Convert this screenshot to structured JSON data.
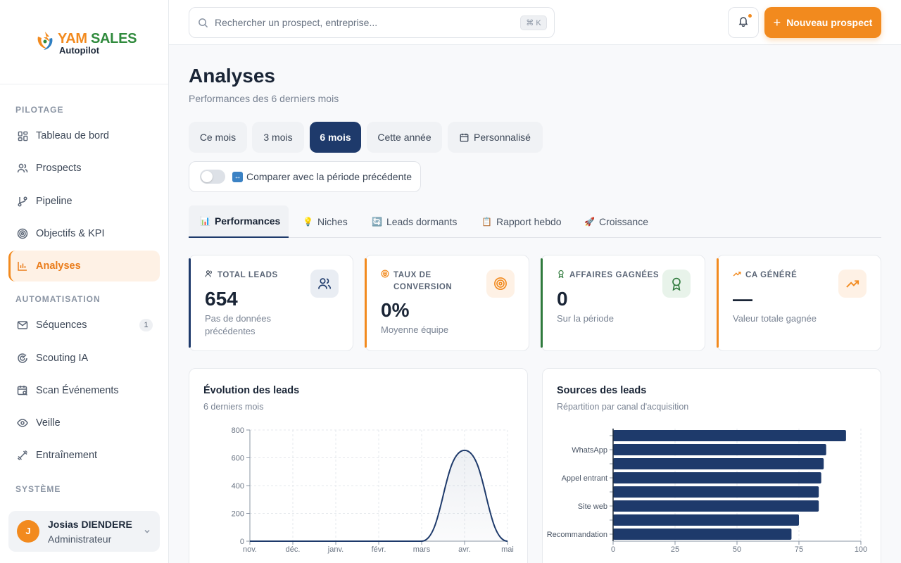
{
  "brand": {
    "name_part1": "YAM",
    "name_part2": "SALES",
    "subtitle": "Autopilot"
  },
  "sidebar": {
    "sections": [
      {
        "title": "PILOTAGE"
      },
      {
        "title": "AUTOMATISATION"
      },
      {
        "title": "SYSTÈME"
      }
    ],
    "items": [
      {
        "label": "Tableau de bord",
        "icon": "dashboard-icon"
      },
      {
        "label": "Prospects",
        "icon": "users-icon"
      },
      {
        "label": "Pipeline",
        "icon": "git-branch-icon"
      },
      {
        "label": "Objectifs & KPI",
        "icon": "target-icon"
      },
      {
        "label": "Analyses",
        "icon": "bar-chart-icon",
        "active": true
      },
      {
        "label": "Séquences",
        "icon": "mail-icon",
        "badge": "1"
      },
      {
        "label": "Scouting IA",
        "icon": "radar-icon"
      },
      {
        "label": "Scan Événements",
        "icon": "calendar-search-icon"
      },
      {
        "label": "Veille",
        "icon": "eye-icon"
      },
      {
        "label": "Entraînement",
        "icon": "dumbbell-icon"
      }
    ]
  },
  "user": {
    "initial": "J",
    "name": "Josias DIENDERE",
    "role": "Administrateur"
  },
  "search": {
    "placeholder": "Rechercher un prospect, entreprise...",
    "shortcut": "⌘ K"
  },
  "header": {
    "new_button": "Nouveau prospect"
  },
  "page": {
    "title": "Analyses",
    "subtitle": "Performances des 6 derniers mois"
  },
  "periods": [
    {
      "label": "Ce mois"
    },
    {
      "label": "3 mois"
    },
    {
      "label": "6 mois",
      "active": true
    },
    {
      "label": "Cette année"
    },
    {
      "label": "Personnalisé",
      "icon": "calendar-icon"
    }
  ],
  "compare": {
    "label": "Comparer avec la période précédente",
    "enabled": false
  },
  "tabs": [
    {
      "label": "Performances",
      "emoji": "📊",
      "active": true
    },
    {
      "label": "Niches",
      "emoji": "💡"
    },
    {
      "label": "Leads dormants",
      "emoji": "🔄"
    },
    {
      "label": "Rapport hebdo",
      "emoji": "📋"
    },
    {
      "label": "Croissance",
      "emoji": "🚀"
    }
  ],
  "kpis": [
    {
      "label": "TOTAL LEADS",
      "value": "654",
      "sub": "Pas de données précédentes",
      "accent": "#1e3a6b"
    },
    {
      "label": "TAUX DE CONVERSION",
      "value": "0%",
      "sub": "Moyenne équipe",
      "accent": "#f28a1e"
    },
    {
      "label": "AFFAIRES GAGNÉES",
      "value": "0",
      "sub": "Sur la période",
      "accent": "#2f7a3c"
    },
    {
      "label": "CA GÉNÉRÉ",
      "value": "—",
      "sub": "Valeur totale gagnée",
      "accent": "#f28a1e"
    }
  ],
  "charts": {
    "evolution": {
      "title": "Évolution des leads",
      "subtitle": "6 derniers mois"
    },
    "sources": {
      "title": "Sources des leads",
      "subtitle": "Répartition par canal d'acquisition"
    }
  },
  "chart_data": [
    {
      "type": "area",
      "title": "Évolution des leads",
      "x": [
        "nov.",
        "déc.",
        "janv.",
        "févr.",
        "mars",
        "avr.",
        "mai"
      ],
      "values": [
        0,
        0,
        0,
        0,
        0,
        654,
        0
      ],
      "ylim": [
        0,
        800
      ],
      "yticks": [
        0,
        200,
        400,
        600,
        800
      ],
      "color": "#1e3a6b",
      "grid": true
    },
    {
      "type": "bar",
      "orientation": "horizontal",
      "title": "Sources des leads",
      "categories": [
        "",
        "WhatsApp",
        "",
        "Appel entrant",
        "",
        "Site web",
        "",
        "Recommandation"
      ],
      "values": [
        94,
        86,
        85,
        84,
        83,
        83,
        75,
        72
      ],
      "xlim": [
        0,
        100
      ],
      "xticks": [
        0,
        25,
        50,
        75,
        100
      ],
      "color": "#1e3a6b",
      "grid": true
    }
  ]
}
